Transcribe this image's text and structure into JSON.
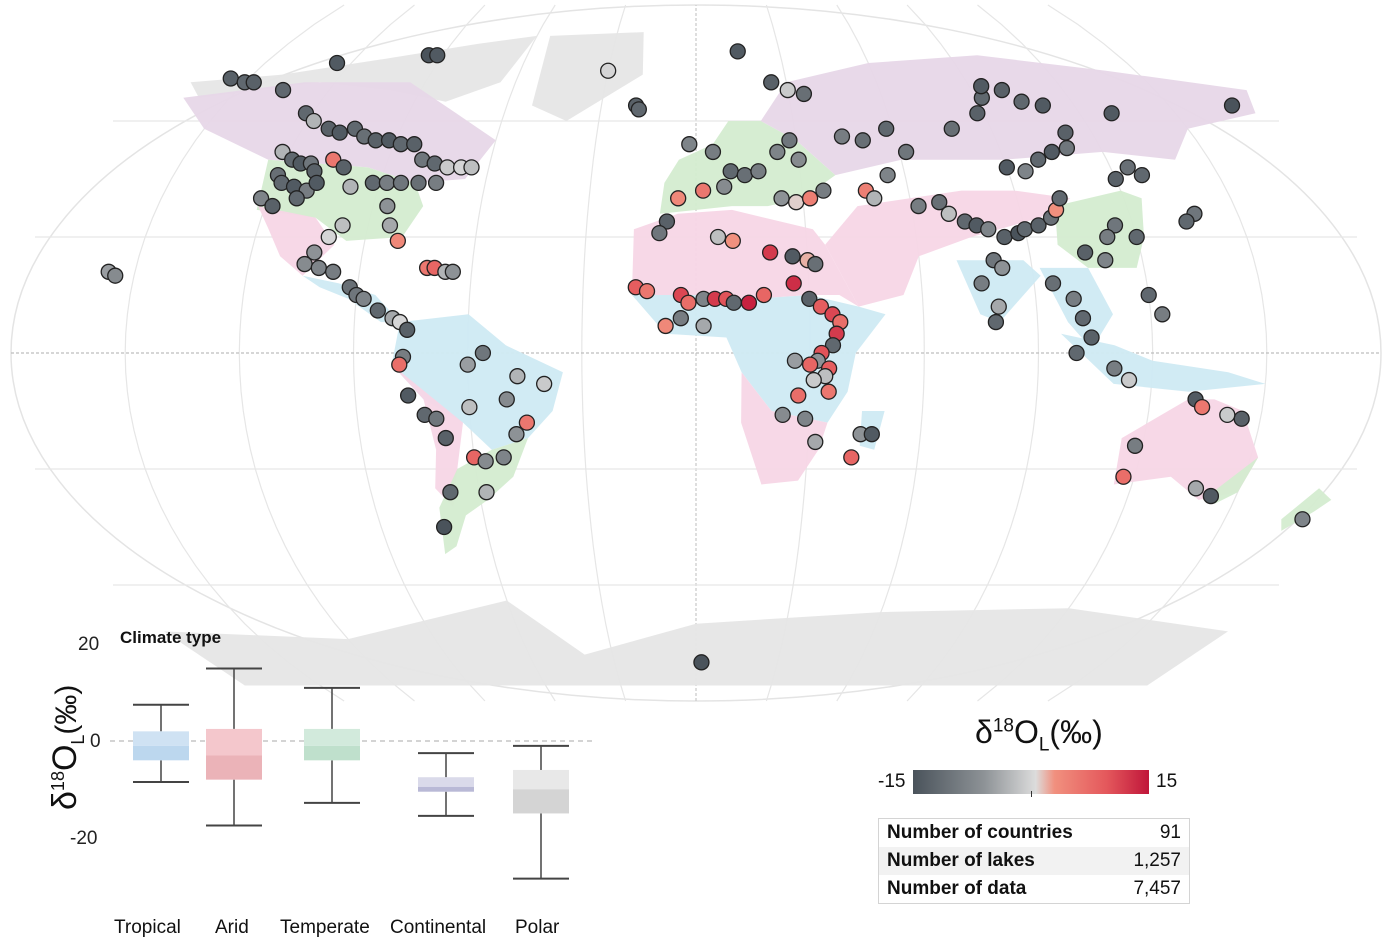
{
  "map": {
    "colorbar": {
      "title_main": "δ",
      "title_sup": "18",
      "title_o": "O",
      "title_sub": "L",
      "title_unit": "(‰)",
      "min_label": "-15",
      "max_label": "15",
      "min": -15,
      "max": 15,
      "colors": [
        "#4a535b",
        "#8d9296",
        "#dcdcdc",
        "#f1907e",
        "#e4585c",
        "#c0163a"
      ]
    },
    "climate_colors": {
      "Tropical": "#cfeaf3",
      "Arid": "#f7d6e6",
      "Temperate": "#d4ecd0",
      "Continental": "#e7d7e8",
      "Polar": "#e6e6e6"
    },
    "stats": [
      {
        "label": "Number of countries",
        "value": "91"
      },
      {
        "label": "Number of lakes",
        "value": "1,257"
      },
      {
        "label": "Number of data",
        "value": "7,457"
      }
    ],
    "lakes": [
      {
        "lon": -156,
        "lat": 71,
        "d18o": -13
      },
      {
        "lon": -150,
        "lat": 70,
        "d18o": -12
      },
      {
        "lon": -147,
        "lat": 70,
        "d18o": -13
      },
      {
        "lon": -135,
        "lat": 68,
        "d18o": -12
      },
      {
        "lon": -125,
        "lat": 75,
        "d18o": -14
      },
      {
        "lon": -95,
        "lat": 77,
        "d18o": -15
      },
      {
        "lon": -92,
        "lat": 77,
        "d18o": -14
      },
      {
        "lon": -30,
        "lat": 73,
        "d18o": 0
      },
      {
        "lon": -122,
        "lat": 62,
        "d18o": -12
      },
      {
        "lon": -118,
        "lat": 60,
        "d18o": -3
      },
      {
        "lon": -112,
        "lat": 58,
        "d18o": -13
      },
      {
        "lon": -108,
        "lat": 57,
        "d18o": -14
      },
      {
        "lon": -104,
        "lat": 58,
        "d18o": -12
      },
      {
        "lon": -100,
        "lat": 56,
        "d18o": -11
      },
      {
        "lon": -96,
        "lat": 55,
        "d18o": -13
      },
      {
        "lon": -92,
        "lat": 55,
        "d18o": -14
      },
      {
        "lon": -88,
        "lat": 54,
        "d18o": -12
      },
      {
        "lon": -84,
        "lat": 54,
        "d18o": -13
      },
      {
        "lon": -80,
        "lat": 50,
        "d18o": -10
      },
      {
        "lon": -76,
        "lat": 49,
        "d18o": -12
      },
      {
        "lon": -72,
        "lat": 48,
        "d18o": -1
      },
      {
        "lon": -68,
        "lat": 48,
        "d18o": 0
      },
      {
        "lon": -65,
        "lat": 48,
        "d18o": -2
      },
      {
        "lon": -122,
        "lat": 52,
        "d18o": -3
      },
      {
        "lon": -118,
        "lat": 50,
        "d18o": -12
      },
      {
        "lon": -115,
        "lat": 49,
        "d18o": -14
      },
      {
        "lon": -112,
        "lat": 49,
        "d18o": -10
      },
      {
        "lon": -110,
        "lat": 47,
        "d18o": -13
      },
      {
        "lon": -106,
        "lat": 50,
        "d18o": 6
      },
      {
        "lon": -102,
        "lat": 48,
        "d18o": -13
      },
      {
        "lon": -120,
        "lat": 46,
        "d18o": -11
      },
      {
        "lon": -118,
        "lat": 44,
        "d18o": -12
      },
      {
        "lon": -114,
        "lat": 43,
        "d18o": -14
      },
      {
        "lon": -110,
        "lat": 42,
        "d18o": -9
      },
      {
        "lon": -122,
        "lat": 40,
        "d18o": -8
      },
      {
        "lon": -118,
        "lat": 38,
        "d18o": -13
      },
      {
        "lon": -112,
        "lat": 40,
        "d18o": -12
      },
      {
        "lon": -108,
        "lat": 44,
        "d18o": -14
      },
      {
        "lon": -98,
        "lat": 43,
        "d18o": -3
      },
      {
        "lon": -92,
        "lat": 44,
        "d18o": -12
      },
      {
        "lon": -88,
        "lat": 44,
        "d18o": -9
      },
      {
        "lon": -84,
        "lat": 44,
        "d18o": -10
      },
      {
        "lon": -79,
        "lat": 44,
        "d18o": -11
      },
      {
        "lon": -74,
        "lat": 44,
        "d18o": -9
      },
      {
        "lon": -86,
        "lat": 38,
        "d18o": -6
      },
      {
        "lon": -84,
        "lat": 33,
        "d18o": -4
      },
      {
        "lon": -81,
        "lat": 29,
        "d18o": 4
      },
      {
        "lon": -97,
        "lat": 33,
        "d18o": -2
      },
      {
        "lon": -100,
        "lat": 30,
        "d18o": 0
      },
      {
        "lon": -103,
        "lat": 26,
        "d18o": -6
      },
      {
        "lon": -157,
        "lat": 21,
        "d18o": -5
      },
      {
        "lon": -155,
        "lat": 20,
        "d18o": -7
      },
      {
        "lon": -105,
        "lat": 23,
        "d18o": -7
      },
      {
        "lon": -101,
        "lat": 22,
        "d18o": -8
      },
      {
        "lon": -97,
        "lat": 21,
        "d18o": -9
      },
      {
        "lon": -92,
        "lat": 17,
        "d18o": -11
      },
      {
        "lon": -90,
        "lat": 15,
        "d18o": -10
      },
      {
        "lon": -88,
        "lat": 14,
        "d18o": -8
      },
      {
        "lon": -84,
        "lat": 11,
        "d18o": -12
      },
      {
        "lon": -80,
        "lat": 9,
        "d18o": -4
      },
      {
        "lon": -78,
        "lat": 8,
        "d18o": 0
      },
      {
        "lon": -76,
        "lat": 6,
        "d18o": -13
      },
      {
        "lon": -72,
        "lat": 22,
        "d18o": 6
      },
      {
        "lon": -70,
        "lat": 22,
        "d18o": 8
      },
      {
        "lon": -67,
        "lat": 21,
        "d18o": -3
      },
      {
        "lon": -65,
        "lat": 21,
        "d18o": -6
      },
      {
        "lon": -77,
        "lat": -1,
        "d18o": -9
      },
      {
        "lon": -78,
        "lat": -3,
        "d18o": 7
      },
      {
        "lon": -76,
        "lat": -11,
        "d18o": -14
      },
      {
        "lon": -72,
        "lat": -16,
        "d18o": -12
      },
      {
        "lon": -69,
        "lat": -17,
        "d18o": -10
      },
      {
        "lon": -67,
        "lat": -22,
        "d18o": -13
      },
      {
        "lon": -60,
        "lat": -3,
        "d18o": -5
      },
      {
        "lon": -56,
        "lat": 0,
        "d18o": -10
      },
      {
        "lon": -47,
        "lat": -6,
        "d18o": -3
      },
      {
        "lon": -40,
        "lat": -8,
        "d18o": -1
      },
      {
        "lon": -50,
        "lat": -12,
        "d18o": -7
      },
      {
        "lon": -60,
        "lat": -14,
        "d18o": -2
      },
      {
        "lon": -45,
        "lat": -18,
        "d18o": 6
      },
      {
        "lon": -48,
        "lat": -21,
        "d18o": -6
      },
      {
        "lon": -60,
        "lat": -27,
        "d18o": 8
      },
      {
        "lon": -57,
        "lat": -28,
        "d18o": -7
      },
      {
        "lon": -52,
        "lat": -27,
        "d18o": -8
      },
      {
        "lon": -68,
        "lat": -36,
        "d18o": -12
      },
      {
        "lon": -58,
        "lat": -36,
        "d18o": -3
      },
      {
        "lon": -72,
        "lat": -45,
        "d18o": -15
      },
      {
        "lon": -19,
        "lat": 64,
        "d18o": -13
      },
      {
        "lon": -18,
        "lat": 63,
        "d18o": -12
      },
      {
        "lon": 15,
        "lat": 78,
        "d18o": -14
      },
      {
        "lon": 25,
        "lat": 70,
        "d18o": -13
      },
      {
        "lon": 30,
        "lat": 68,
        "d18o": -1
      },
      {
        "lon": 35,
        "lat": 67,
        "d18o": -11
      },
      {
        "lon": -2,
        "lat": 54,
        "d18o": -8
      },
      {
        "lon": 5,
        "lat": 52,
        "d18o": -9
      },
      {
        "lon": 10,
        "lat": 47,
        "d18o": -12
      },
      {
        "lon": 14,
        "lat": 46,
        "d18o": -11
      },
      {
        "lon": 18,
        "lat": 47,
        "d18o": -9
      },
      {
        "lon": 24,
        "lat": 52,
        "d18o": -8
      },
      {
        "lon": 28,
        "lat": 55,
        "d18o": -10
      },
      {
        "lon": 30,
        "lat": 50,
        "d18o": -7
      },
      {
        "lon": -5,
        "lat": 40,
        "d18o": 4
      },
      {
        "lon": 2,
        "lat": 42,
        "d18o": 6
      },
      {
        "lon": 8,
        "lat": 43,
        "d18o": -7
      },
      {
        "lon": 24,
        "lat": 40,
        "d18o": -6
      },
      {
        "lon": 28,
        "lat": 39,
        "d18o": 1
      },
      {
        "lon": 32,
        "lat": 40,
        "d18o": 5
      },
      {
        "lon": 36,
        "lat": 42,
        "d18o": -9
      },
      {
        "lon": -8,
        "lat": 34,
        "d18o": -13
      },
      {
        "lon": -10,
        "lat": 31,
        "d18o": -10
      },
      {
        "lon": 6,
        "lat": 30,
        "d18o": -2
      },
      {
        "lon": 10,
        "lat": 29,
        "d18o": 3
      },
      {
        "lon": 20,
        "lat": 26,
        "d18o": 12
      },
      {
        "lon": 26,
        "lat": 25,
        "d18o": -14
      },
      {
        "lon": 30,
        "lat": 24,
        "d18o": 2
      },
      {
        "lon": 32,
        "lat": 23,
        "d18o": -11
      },
      {
        "lon": -16,
        "lat": 17,
        "d18o": 9
      },
      {
        "lon": -13,
        "lat": 16,
        "d18o": 6
      },
      {
        "lon": -4,
        "lat": 15,
        "d18o": 11
      },
      {
        "lon": -2,
        "lat": 13,
        "d18o": 7
      },
      {
        "lon": 2,
        "lat": 14,
        "d18o": -8
      },
      {
        "lon": 5,
        "lat": 14,
        "d18o": 12
      },
      {
        "lon": 8,
        "lat": 14,
        "d18o": 10
      },
      {
        "lon": 10,
        "lat": 13,
        "d18o": -12
      },
      {
        "lon": 14,
        "lat": 13,
        "d18o": 14
      },
      {
        "lon": 18,
        "lat": 15,
        "d18o": 8
      },
      {
        "lon": -4,
        "lat": 9,
        "d18o": -9
      },
      {
        "lon": -8,
        "lat": 7,
        "d18o": 4
      },
      {
        "lon": 2,
        "lat": 7,
        "d18o": -4
      },
      {
        "lon": 26,
        "lat": 18,
        "d18o": 13
      },
      {
        "lon": 30,
        "lat": 14,
        "d18o": -13
      },
      {
        "lon": 33,
        "lat": 12,
        "d18o": 9
      },
      {
        "lon": 36,
        "lat": 10,
        "d18o": 11
      },
      {
        "lon": 38,
        "lat": 8,
        "d18o": 7
      },
      {
        "lon": 37,
        "lat": 5,
        "d18o": 12
      },
      {
        "lon": 36,
        "lat": 2,
        "d18o": -12
      },
      {
        "lon": 33,
        "lat": 0,
        "d18o": 10
      },
      {
        "lon": 32,
        "lat": -2,
        "d18o": -6
      },
      {
        "lon": 30,
        "lat": -3,
        "d18o": 8
      },
      {
        "lon": 35,
        "lat": -4,
        "d18o": 9
      },
      {
        "lon": 34,
        "lat": -6,
        "d18o": -2
      },
      {
        "lon": 31,
        "lat": -7,
        "d18o": -1
      },
      {
        "lon": 35,
        "lat": -10,
        "d18o": 6
      },
      {
        "lon": 26,
        "lat": -2,
        "d18o": -5
      },
      {
        "lon": 27,
        "lat": -11,
        "d18o": 7
      },
      {
        "lon": 23,
        "lat": -16,
        "d18o": -7
      },
      {
        "lon": 29,
        "lat": -17,
        "d18o": -8
      },
      {
        "lon": 32,
        "lat": -23,
        "d18o": -4
      },
      {
        "lon": 44,
        "lat": -21,
        "d18o": -6
      },
      {
        "lon": 47,
        "lat": -21,
        "d18o": -14
      },
      {
        "lon": 42,
        "lat": -27,
        "d18o": 8
      },
      {
        "lon": 44,
        "lat": 56,
        "d18o": -9
      },
      {
        "lon": 50,
        "lat": 55,
        "d18o": -11
      },
      {
        "lon": 58,
        "lat": 58,
        "d18o": -12
      },
      {
        "lon": 62,
        "lat": 52,
        "d18o": -10
      },
      {
        "lon": 55,
        "lat": 46,
        "d18o": -8
      },
      {
        "lon": 48,
        "lat": 42,
        "d18o": 5
      },
      {
        "lon": 50,
        "lat": 40,
        "d18o": -3
      },
      {
        "lon": 62,
        "lat": 38,
        "d18o": -9
      },
      {
        "lon": 68,
        "lat": 39,
        "d18o": -11
      },
      {
        "lon": 70,
        "lat": 36,
        "d18o": -2
      },
      {
        "lon": 74,
        "lat": 34,
        "d18o": -12
      },
      {
        "lon": 77,
        "lat": 33,
        "d18o": -14
      },
      {
        "lon": 80,
        "lat": 32,
        "d18o": -8
      },
      {
        "lon": 84,
        "lat": 30,
        "d18o": -13
      },
      {
        "lon": 88,
        "lat": 31,
        "d18o": -15
      },
      {
        "lon": 90,
        "lat": 32,
        "d18o": -12
      },
      {
        "lon": 94,
        "lat": 33,
        "d18o": -13
      },
      {
        "lon": 98,
        "lat": 35,
        "d18o": -11
      },
      {
        "lon": 100,
        "lat": 37,
        "d18o": 3
      },
      {
        "lon": 102,
        "lat": 40,
        "d18o": -12
      },
      {
        "lon": 90,
        "lat": 48,
        "d18o": -14
      },
      {
        "lon": 95,
        "lat": 47,
        "d18o": -8
      },
      {
        "lon": 100,
        "lat": 50,
        "d18o": -12
      },
      {
        "lon": 105,
        "lat": 52,
        "d18o": -14
      },
      {
        "lon": 110,
        "lat": 53,
        "d18o": -10
      },
      {
        "lon": 112,
        "lat": 57,
        "d18o": -13
      },
      {
        "lon": 88,
        "lat": 62,
        "d18o": -13
      },
      {
        "lon": 92,
        "lat": 66,
        "d18o": -12
      },
      {
        "lon": 94,
        "lat": 69,
        "d18o": -14
      },
      {
        "lon": 100,
        "lat": 68,
        "d18o": -13
      },
      {
        "lon": 104,
        "lat": 65,
        "d18o": -12
      },
      {
        "lon": 110,
        "lat": 64,
        "d18o": -14
      },
      {
        "lon": 78,
        "lat": 58,
        "d18o": -11
      },
      {
        "lon": 130,
        "lat": 62,
        "d18o": -14
      },
      {
        "lon": 170,
        "lat": 64,
        "d18o": -15
      },
      {
        "lon": 115,
        "lat": 33,
        "d18o": -10
      },
      {
        "lon": 112,
        "lat": 30,
        "d18o": -9
      },
      {
        "lon": 120,
        "lat": 30,
        "d18o": -12
      },
      {
        "lon": 110,
        "lat": 24,
        "d18o": -8
      },
      {
        "lon": 105,
        "lat": 26,
        "d18o": -13
      },
      {
        "lon": 80,
        "lat": 24,
        "d18o": -10
      },
      {
        "lon": 82,
        "lat": 22,
        "d18o": -6
      },
      {
        "lon": 76,
        "lat": 18,
        "d18o": -9
      },
      {
        "lon": 80,
        "lat": 12,
        "d18o": -4
      },
      {
        "lon": 79,
        "lat": 8,
        "d18o": -12
      },
      {
        "lon": 95,
        "lat": 18,
        "d18o": -11
      },
      {
        "lon": 100,
        "lat": 14,
        "d18o": -9
      },
      {
        "lon": 102,
        "lat": 9,
        "d18o": -12
      },
      {
        "lon": 104,
        "lat": 4,
        "d18o": -13
      },
      {
        "lon": 100,
        "lat": 0,
        "d18o": -12
      },
      {
        "lon": 110,
        "lat": -4,
        "d18o": -9
      },
      {
        "lon": 114,
        "lat": -7,
        "d18o": -1
      },
      {
        "lon": 120,
        "lat": 15,
        "d18o": -12
      },
      {
        "lon": 123,
        "lat": 10,
        "d18o": -9
      },
      {
        "lon": 132,
        "lat": -12,
        "d18o": -14
      },
      {
        "lon": 134,
        "lat": -14,
        "d18o": 6
      },
      {
        "lon": 145,
        "lat": -17,
        "d18o": -13
      },
      {
        "lon": 141,
        "lat": -16,
        "d18o": -1
      },
      {
        "lon": 118,
        "lat": -24,
        "d18o": -9
      },
      {
        "lon": 117,
        "lat": -32,
        "d18o": 7
      },
      {
        "lon": 138,
        "lat": -35,
        "d18o": -4
      },
      {
        "lon": 143,
        "lat": -37,
        "d18o": -14
      },
      {
        "lon": 172,
        "lat": -43,
        "d18o": -8
      },
      {
        "lon": 120,
        "lat": 45,
        "d18o": -13
      },
      {
        "lon": 128,
        "lat": 46,
        "d18o": -12
      },
      {
        "lon": 125,
        "lat": 48,
        "d18o": -11
      },
      {
        "lon": 138,
        "lat": 36,
        "d18o": -10
      },
      {
        "lon": 135,
        "lat": 34,
        "d18o": -12
      },
      {
        "lon": 2,
        "lat": -80,
        "d18o": -15
      }
    ]
  },
  "boxplot": {
    "title": "Climate type",
    "ylabel_delta": "δ",
    "ylabel_sup": "18",
    "ylabel_o": "O",
    "ylabel_sub": "L",
    "ylabel_unit": "(‰)",
    "yticks": [
      "20",
      "0",
      "-20"
    ],
    "ylim": [
      -28,
      22
    ],
    "chart_data": {
      "type": "boxplot",
      "categories": [
        "Tropical",
        "Arid",
        "Temperate",
        "Continental",
        "Polar"
      ],
      "colors": [
        "#cfe2f3",
        "#f4c7cc",
        "#d2eadc",
        "#dadaea",
        "#e8e8e8"
      ],
      "dark_colors": [
        "#bcd7ee",
        "#ebb3b8",
        "#bfe0cc",
        "#b9b9d6",
        "#d4d4d4"
      ],
      "min": [
        -8.5,
        -17.5,
        -12.8,
        -15.5,
        -28.5
      ],
      "q1": [
        -4,
        -8,
        -4,
        -10.5,
        -15
      ],
      "median": [
        -1,
        -3,
        -1,
        -9.5,
        -10
      ],
      "q3": [
        2,
        2.5,
        2.5,
        -7.5,
        -6
      ],
      "max": [
        7.5,
        15,
        11,
        -2.5,
        -1
      ],
      "ylabel": "δ18OL (‰)",
      "reference_line": 0
    }
  }
}
